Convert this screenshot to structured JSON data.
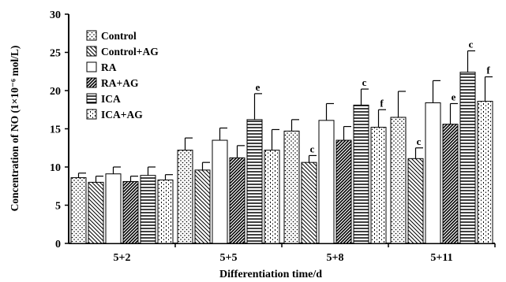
{
  "chart_data": {
    "type": "bar",
    "title": "",
    "xlabel": "Differentiation time/d",
    "ylabel": "Concentration of NO (1×10⁻⁶ mol/L)",
    "ylim": [
      0,
      30
    ],
    "yticks": [
      0,
      5,
      10,
      15,
      20,
      25,
      30
    ],
    "categories": [
      "5+2",
      "5+5",
      "5+8",
      "5+11"
    ],
    "legend_position": "top-left",
    "series": [
      {
        "name": "Control",
        "pattern": "dots",
        "values": [
          8.6,
          12.2,
          14.7,
          16.5
        ],
        "errors": [
          0.6,
          1.6,
          1.5,
          3.4
        ],
        "annotations": [
          "",
          "",
          "",
          ""
        ]
      },
      {
        "name": "Control+AG",
        "pattern": "diagonal",
        "values": [
          8.0,
          9.6,
          10.6,
          11.1
        ],
        "errors": [
          0.8,
          1.0,
          0.9,
          1.4
        ],
        "annotations": [
          "",
          "",
          "c",
          "c"
        ]
      },
      {
        "name": "RA",
        "pattern": "blank",
        "values": [
          9.1,
          13.5,
          16.1,
          18.4
        ],
        "errors": [
          0.9,
          1.6,
          2.2,
          2.9
        ],
        "annotations": [
          "",
          "",
          "",
          ""
        ]
      },
      {
        "name": "RA+AG",
        "pattern": "dense-diagonal",
        "values": [
          8.1,
          11.2,
          13.5,
          15.6
        ],
        "errors": [
          0.7,
          1.6,
          1.8,
          2.7
        ],
        "annotations": [
          "",
          "",
          "",
          "e"
        ]
      },
      {
        "name": "ICA",
        "pattern": "horizontal",
        "values": [
          8.9,
          16.2,
          18.1,
          22.4
        ],
        "errors": [
          1.1,
          3.4,
          2.1,
          2.8
        ],
        "annotations": [
          "",
          "e",
          "c",
          "c"
        ]
      },
      {
        "name": "ICA+AG",
        "pattern": "dashes",
        "values": [
          8.3,
          12.2,
          15.2,
          18.6
        ],
        "errors": [
          0.7,
          2.7,
          2.3,
          3.2
        ],
        "annotations": [
          "",
          "",
          "f",
          "f"
        ]
      }
    ]
  }
}
